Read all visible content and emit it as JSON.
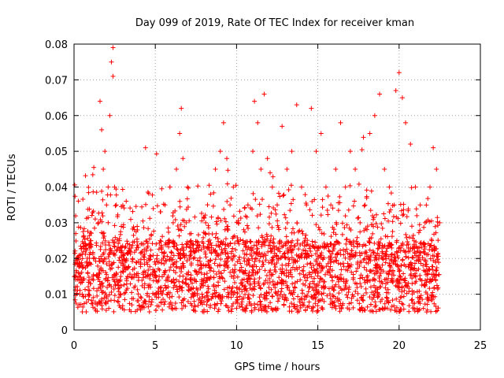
{
  "chart_data": {
    "type": "scatter",
    "title": "Day 099 of 2019, Rate Of TEC Index for receiver kman",
    "xlabel": "GPS time / hours",
    "ylabel": "ROTI / TECUs",
    "xlim": [
      0,
      25
    ],
    "ylim": [
      0,
      0.08
    ],
    "x_ticks": [
      "0",
      "5",
      "10",
      "15",
      "20",
      "25"
    ],
    "y_ticks": [
      "0",
      "0.01",
      "0.02",
      "0.03",
      "0.04",
      "0.05",
      "0.06",
      "0.07",
      "0.08"
    ],
    "grid": true,
    "marker": "+",
    "series": [
      {
        "color": "#ff0000",
        "x": [
          0.1,
          0.3,
          0.5,
          0.8,
          1.0,
          1.2,
          1.5,
          1.6,
          1.7,
          1.8,
          1.9,
          2.0,
          2.1,
          2.2,
          2.3,
          2.4,
          2.4,
          2.5,
          2.6,
          2.8,
          3.0,
          3.3,
          3.6,
          3.9,
          4.2,
          4.4,
          4.6,
          5.0,
          5.3,
          5.6,
          5.9,
          6.1,
          6.3,
          6.5,
          6.6,
          6.7,
          6.9,
          7.2,
          7.5,
          7.8,
          8.1,
          8.4,
          8.7,
          9.0,
          9.2,
          9.4,
          9.6,
          9.8,
          10.1,
          10.4,
          10.7,
          11.0,
          11.1,
          11.3,
          11.5,
          11.7,
          11.9,
          12.2,
          12.5,
          12.8,
          13.1,
          13.4,
          13.7,
          14.0,
          14.3,
          14.6,
          14.9,
          15.2,
          15.5,
          15.8,
          16.1,
          16.4,
          16.7,
          17.0,
          17.3,
          17.6,
          17.9,
          18.2,
          18.5,
          18.8,
          19.1,
          19.4,
          19.7,
          19.8,
          20.0,
          20.2,
          20.4,
          20.7,
          21.0,
          21.3,
          21.6,
          21.9,
          22.1,
          22.3,
          22.5
        ],
        "y": [
          0.012,
          0.015,
          0.01,
          0.018,
          0.013,
          0.02,
          0.03,
          0.064,
          0.056,
          0.045,
          0.05,
          0.035,
          0.04,
          0.06,
          0.075,
          0.079,
          0.071,
          0.04,
          0.035,
          0.025,
          0.018,
          0.015,
          0.02,
          0.028,
          0.022,
          0.051,
          0.02,
          0.015,
          0.025,
          0.035,
          0.04,
          0.03,
          0.045,
          0.055,
          0.062,
          0.048,
          0.03,
          0.025,
          0.022,
          0.018,
          0.03,
          0.038,
          0.045,
          0.05,
          0.058,
          0.048,
          0.035,
          0.04,
          0.03,
          0.025,
          0.035,
          0.05,
          0.064,
          0.058,
          0.045,
          0.066,
          0.048,
          0.04,
          0.035,
          0.057,
          0.045,
          0.05,
          0.063,
          0.04,
          0.035,
          0.062,
          0.05,
          0.055,
          0.04,
          0.035,
          0.045,
          0.058,
          0.04,
          0.05,
          0.045,
          0.03,
          0.035,
          0.055,
          0.06,
          0.066,
          0.045,
          0.04,
          0.035,
          0.067,
          0.072,
          0.065,
          0.058,
          0.052,
          0.04,
          0.035,
          0.03,
          0.04,
          0.051,
          0.045,
          0.03
        ]
      }
    ]
  }
}
